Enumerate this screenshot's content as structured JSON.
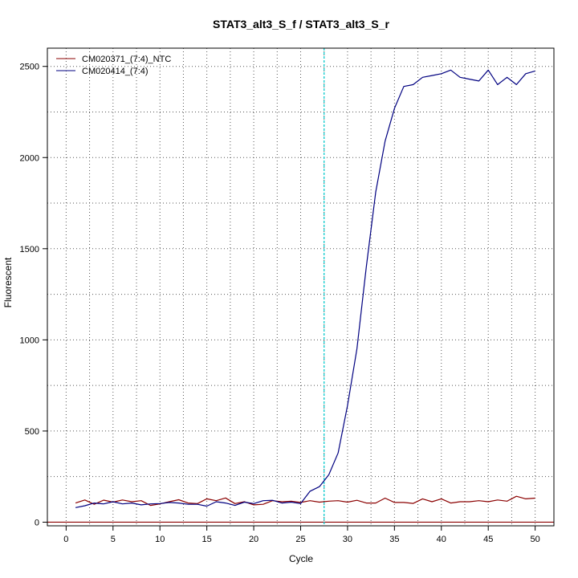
{
  "chart_data": {
    "type": "line",
    "title": "STAT3_alt3_S_f / STAT3_alt3_S_r",
    "xlabel": "Cycle",
    "ylabel": "Fluorescent",
    "xlim": [
      -2,
      52
    ],
    "ylim": [
      -20,
      2600
    ],
    "x_ticks": [
      0,
      5,
      10,
      15,
      20,
      25,
      30,
      35,
      40,
      45,
      50
    ],
    "y_ticks": [
      0,
      500,
      1000,
      1500,
      2000,
      2500
    ],
    "grid": true,
    "grid_x": [
      2.5,
      7.5,
      12.5,
      17.5,
      22.5,
      27.5,
      32.5,
      37.5,
      42.5,
      47.5
    ],
    "grid_y": [
      250,
      750,
      1250,
      1750,
      2250
    ],
    "legend_position": "top-left",
    "threshold_cycle": 27.5,
    "threshold_color": "#00CED1",
    "baseline_value": 0,
    "baseline_color": "#8B0000",
    "series": [
      {
        "name": "CM020371_(7:4)_NTC",
        "color": "#8B0000",
        "x": [
          1,
          2,
          3,
          4,
          5,
          6,
          7,
          8,
          9,
          10,
          11,
          12,
          13,
          14,
          15,
          16,
          17,
          18,
          19,
          20,
          21,
          22,
          23,
          24,
          25,
          26,
          27,
          28,
          29,
          30,
          31,
          32,
          33,
          34,
          35,
          36,
          37,
          38,
          39,
          40,
          41,
          42,
          43,
          44,
          45,
          46,
          47,
          48,
          49,
          50
        ],
        "y": [
          105,
          122,
          98,
          121,
          110,
          122,
          112,
          118,
          92,
          100,
          112,
          123,
          105,
          102,
          128,
          118,
          133,
          102,
          112,
          95,
          98,
          118,
          112,
          115,
          108,
          118,
          110,
          115,
          118,
          110,
          120,
          105,
          105,
          132,
          108,
          108,
          103,
          128,
          112,
          128,
          105,
          112,
          112,
          118,
          112,
          122,
          115,
          142,
          128,
          132
        ]
      },
      {
        "name": "CM020414_(7:4)",
        "color": "#000080",
        "x": [
          1,
          2,
          3,
          4,
          5,
          6,
          7,
          8,
          9,
          10,
          11,
          12,
          13,
          14,
          15,
          16,
          17,
          18,
          19,
          20,
          21,
          22,
          23,
          24,
          25,
          26,
          27,
          28,
          29,
          30,
          31,
          32,
          33,
          34,
          35,
          36,
          37,
          38,
          39,
          40,
          41,
          42,
          43,
          44,
          45,
          46,
          47,
          48,
          49,
          50
        ],
        "y": [
          80,
          90,
          105,
          100,
          112,
          100,
          105,
          95,
          100,
          102,
          108,
          105,
          98,
          98,
          88,
          112,
          105,
          92,
          110,
          102,
          118,
          120,
          105,
          110,
          102,
          170,
          195,
          260,
          380,
          640,
          950,
          1400,
          1810,
          2090,
          2270,
          2390,
          2400,
          2440,
          2450,
          2460,
          2480,
          2440,
          2430,
          2420,
          2480,
          2400,
          2440,
          2400,
          2460,
          2475
        ]
      }
    ]
  }
}
